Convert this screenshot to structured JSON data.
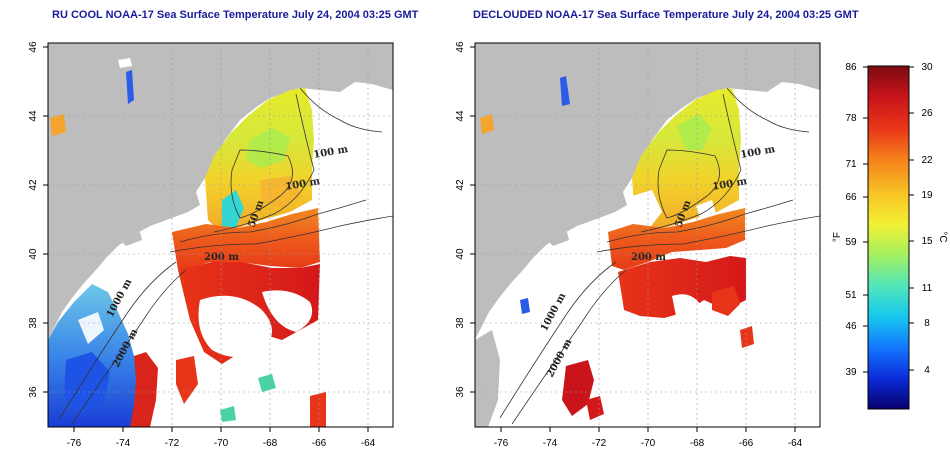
{
  "panels": [
    {
      "id": "left",
      "title": "RU COOL NOAA-17 Sea Surface Temperature July 24, 2004 03:25 GMT",
      "contour_labels": [
        "100 m",
        "100 m",
        "50 m",
        "200 m",
        "1000 m",
        "2000 m"
      ]
    },
    {
      "id": "right",
      "title": "DECLOUDED NOAA-17 Sea Surface Temperature July 24, 2004 03:25 GMT",
      "contour_labels": [
        "100 m",
        "100 m",
        "50 m",
        "200 m",
        "1000 m",
        "2000 m"
      ]
    }
  ],
  "axes": {
    "x_ticks": [
      "-76",
      "-74",
      "-72",
      "-70",
      "-68",
      "-66",
      "-64"
    ],
    "y_ticks": [
      "36",
      "38",
      "40",
      "42",
      "44",
      "46"
    ]
  },
  "colorbar": {
    "fahrenheit_unit": "°F",
    "celsius_unit": "°C",
    "fahrenheit_ticks": [
      "86",
      "78",
      "71",
      "66",
      "59",
      "51",
      "46",
      "39"
    ],
    "celsius_ticks": [
      "30",
      "26",
      "22",
      "19",
      "15",
      "11",
      "8",
      "4"
    ],
    "colors": [
      "#08006e",
      "#0a2cd9",
      "#1478ff",
      "#16c8ee",
      "#52e6b8",
      "#a6f060",
      "#f2f032",
      "#f8c224",
      "#f57f1a",
      "#e83418",
      "#c8141a",
      "#7c0a12"
    ]
  },
  "colors": {
    "land": "#bdbdbd",
    "ocean_cloud": "#ffffff",
    "title": "#1a1a9c"
  }
}
